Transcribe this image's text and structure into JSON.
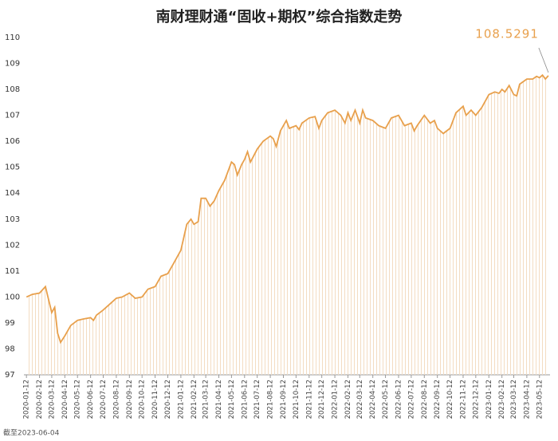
{
  "chart_data": {
    "type": "line",
    "title": "南财理财通“固收+期权”综合指数走势",
    "footnote": "截至2023-06-04",
    "color": "#e8a04c",
    "x": [
      "2020-01-12",
      "2020-01-26",
      "2020-02-12",
      "2020-02-26",
      "2020-03-12",
      "2020-03-19",
      "2020-03-26",
      "2020-04-02",
      "2020-04-12",
      "2020-04-26",
      "2020-05-12",
      "2020-05-26",
      "2020-06-12",
      "2020-06-19",
      "2020-06-26",
      "2020-07-12",
      "2020-07-26",
      "2020-08-12",
      "2020-08-26",
      "2020-09-12",
      "2020-09-26",
      "2020-10-12",
      "2020-10-26",
      "2020-11-12",
      "2020-11-26",
      "2020-12-12",
      "2020-12-26",
      "2021-01-12",
      "2021-01-26",
      "2021-02-05",
      "2021-02-12",
      "2021-02-22",
      "2021-03-01",
      "2021-03-12",
      "2021-03-22",
      "2021-04-01",
      "2021-04-12",
      "2021-04-26",
      "2021-05-12",
      "2021-05-19",
      "2021-05-26",
      "2021-06-05",
      "2021-06-12",
      "2021-06-19",
      "2021-06-26",
      "2021-07-12",
      "2021-07-26",
      "2021-08-12",
      "2021-08-19",
      "2021-08-26",
      "2021-09-05",
      "2021-09-12",
      "2021-09-19",
      "2021-09-26",
      "2021-10-12",
      "2021-10-19",
      "2021-10-26",
      "2021-11-12",
      "2021-11-26",
      "2021-12-05",
      "2021-12-12",
      "2021-12-26",
      "2022-01-12",
      "2022-01-26",
      "2022-02-05",
      "2022-02-12",
      "2022-02-19",
      "2022-03-01",
      "2022-03-12",
      "2022-03-19",
      "2022-03-26",
      "2022-04-12",
      "2022-04-26",
      "2022-05-12",
      "2022-05-26",
      "2022-06-12",
      "2022-06-26",
      "2022-07-12",
      "2022-07-19",
      "2022-07-26",
      "2022-08-12",
      "2022-08-26",
      "2022-09-05",
      "2022-09-12",
      "2022-09-26",
      "2022-10-12",
      "2022-10-26",
      "2022-11-12",
      "2022-11-19",
      "2022-12-01",
      "2022-12-12",
      "2022-12-26",
      "2023-01-12",
      "2023-01-26",
      "2023-02-05",
      "2023-02-12",
      "2023-02-19",
      "2023-03-01",
      "2023-03-12",
      "2023-03-19",
      "2023-03-26",
      "2023-04-12",
      "2023-04-26",
      "2023-05-05",
      "2023-05-12",
      "2023-05-19",
      "2023-05-26",
      "2023-06-02"
    ],
    "values": [
      100.0,
      100.1,
      100.15,
      100.4,
      99.4,
      99.6,
      98.6,
      98.25,
      98.5,
      98.9,
      99.1,
      99.15,
      99.2,
      99.1,
      99.3,
      99.5,
      99.7,
      99.95,
      100.0,
      100.15,
      99.95,
      100.0,
      100.3,
      100.4,
      100.8,
      100.9,
      101.3,
      101.8,
      102.8,
      103.0,
      102.8,
      102.9,
      103.8,
      103.8,
      103.5,
      103.7,
      104.1,
      104.5,
      105.2,
      105.1,
      104.7,
      105.1,
      105.3,
      105.6,
      105.2,
      105.7,
      106.0,
      106.2,
      106.1,
      105.8,
      106.4,
      106.6,
      106.8,
      106.5,
      106.6,
      106.45,
      106.7,
      106.9,
      106.95,
      106.5,
      106.8,
      107.1,
      107.2,
      107.0,
      106.7,
      107.1,
      106.8,
      107.2,
      106.7,
      107.2,
      106.9,
      106.8,
      106.6,
      106.5,
      106.9,
      107.0,
      106.6,
      106.7,
      106.4,
      106.6,
      107.0,
      106.7,
      106.8,
      106.5,
      106.3,
      106.5,
      107.1,
      107.35,
      107.0,
      107.2,
      107.0,
      107.3,
      107.8,
      107.9,
      107.85,
      108.0,
      107.9,
      108.15,
      107.8,
      107.75,
      108.2,
      108.4,
      108.4,
      108.5,
      108.45,
      108.55,
      108.4,
      108.5291
    ],
    "xlim": [
      "2020-01-06",
      "2023-06-06"
    ],
    "xticks": [
      "2020-01-12",
      "2020-02-12",
      "2020-03-12",
      "2020-04-12",
      "2020-05-12",
      "2020-06-12",
      "2020-07-12",
      "2020-08-12",
      "2020-09-12",
      "2020-10-12",
      "2020-11-12",
      "2020-12-12",
      "2021-01-12",
      "2021-02-12",
      "2021-03-12",
      "2021-04-12",
      "2021-05-12",
      "2021-06-12",
      "2021-07-12",
      "2021-08-12",
      "2021-09-12",
      "2021-10-12",
      "2021-11-12",
      "2021-12-12",
      "2022-01-12",
      "2022-02-12",
      "2022-03-12",
      "2022-04-12",
      "2022-05-12",
      "2022-06-12",
      "2022-07-12",
      "2022-08-12",
      "2022-09-12",
      "2022-10-12",
      "2022-11-12",
      "2022-12-12",
      "2023-01-12",
      "2023-02-12",
      "2023-03-12",
      "2023-04-12",
      "2023-05-12"
    ],
    "ylim": [
      97,
      110
    ],
    "yticks": [
      97,
      98,
      99,
      100,
      101,
      102,
      103,
      104,
      105,
      106,
      107,
      108,
      109,
      110
    ]
  }
}
